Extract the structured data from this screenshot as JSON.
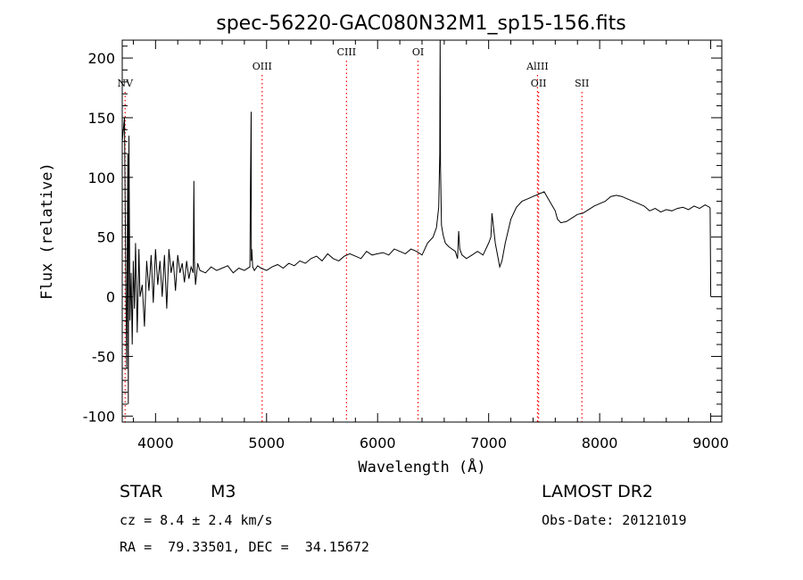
{
  "chart_data": {
    "type": "line",
    "title": "spec-56220-GAC080N32M1_sp15-156.fits",
    "xlabel": "Wavelength (Å)",
    "ylabel": "Flux (relative)",
    "xlim": [
      3700,
      9100
    ],
    "ylim": [
      -105,
      215
    ],
    "xticks": [
      4000,
      5000,
      6000,
      7000,
      8000,
      9000
    ],
    "yticks": [
      -100,
      -50,
      0,
      50,
      100,
      150,
      200
    ],
    "grid": false,
    "line_color": "#000000",
    "marker_color": "#ff0000",
    "series": [
      {
        "x": [
          3700,
          3720,
          3730,
          3740,
          3750,
          3755,
          3760,
          3770,
          3780,
          3790,
          3800,
          3810,
          3820,
          3835,
          3850,
          3860,
          3880,
          3900,
          3920,
          3940,
          3960,
          3980,
          4000,
          4020,
          4040,
          4060,
          4080,
          4101,
          4120,
          4140,
          4160,
          4180,
          4200,
          4220,
          4240,
          4260,
          4280,
          4300,
          4320,
          4340,
          4345,
          4350,
          4360,
          4380,
          4400,
          4450,
          4500,
          4550,
          4600,
          4650,
          4700,
          4750,
          4800,
          4850,
          4855,
          4861,
          4863,
          4867,
          4875,
          4890,
          4920,
          4950,
          5000,
          5050,
          5100,
          5150,
          5200,
          5250,
          5300,
          5350,
          5400,
          5450,
          5500,
          5550,
          5600,
          5650,
          5700,
          5750,
          5800,
          5850,
          5900,
          5950,
          6000,
          6050,
          6100,
          6150,
          6200,
          6250,
          6300,
          6350,
          6400,
          6450,
          6500,
          6530,
          6550,
          6560,
          6563,
          6566,
          6575,
          6590,
          6610,
          6640,
          6670,
          6700,
          6720,
          6730,
          6740,
          6760,
          6800,
          6850,
          6900,
          6950,
          7000,
          7020,
          7030,
          7060,
          7100,
          7120,
          7150,
          7200,
          7250,
          7300,
          7350,
          7400,
          7450,
          7500,
          7550,
          7600,
          7620,
          7650,
          7700,
          7750,
          7800,
          7850,
          7900,
          7950,
          8000,
          8050,
          8100,
          8150,
          8200,
          8250,
          8300,
          8350,
          8400,
          8450,
          8500,
          8550,
          8600,
          8650,
          8700,
          8750,
          8800,
          8850,
          8900,
          8950,
          8990,
          8995,
          9000
        ],
        "y": [
          130,
          150,
          40,
          -60,
          120,
          -90,
          135,
          -20,
          20,
          -40,
          30,
          -10,
          45,
          -30,
          40,
          0,
          10,
          -25,
          30,
          5,
          35,
          -5,
          40,
          10,
          30,
          0,
          35,
          -10,
          40,
          20,
          30,
          5,
          35,
          20,
          28,
          12,
          30,
          15,
          25,
          20,
          97,
          30,
          10,
          28,
          22,
          20,
          25,
          22,
          24,
          26,
          20,
          24,
          22,
          25,
          90,
          155,
          30,
          40,
          25,
          22,
          26,
          24,
          22,
          25,
          27,
          24,
          28,
          26,
          30,
          28,
          32,
          34,
          30,
          36,
          32,
          30,
          34,
          36,
          34,
          32,
          38,
          35,
          36,
          37,
          35,
          40,
          38,
          36,
          40,
          38,
          35,
          45,
          50,
          58,
          75,
          120,
          215,
          110,
          60,
          52,
          45,
          42,
          40,
          38,
          32,
          55,
          40,
          35,
          32,
          35,
          38,
          35,
          45,
          50,
          70,
          45,
          25,
          30,
          45,
          65,
          75,
          80,
          82,
          84,
          86,
          88,
          80,
          72,
          65,
          62,
          63,
          66,
          69,
          70,
          73,
          76,
          78,
          80,
          84,
          85,
          84,
          82,
          80,
          78,
          76,
          72,
          74,
          71,
          73,
          72,
          74,
          75,
          73,
          76,
          74,
          77,
          75,
          74,
          0
        ]
      }
    ],
    "line_markers": [
      {
        "label": "NV",
        "x": 3726,
        "label_row": 2
      },
      {
        "label": "OIII",
        "x": 4960,
        "label_row": 1
      },
      {
        "label": "CIII",
        "x": 5720,
        "label_row": 0
      },
      {
        "label": "OI",
        "x": 6364,
        "label_row": 0
      },
      {
        "label": "AlIII",
        "x": 7440,
        "label_row": 1
      },
      {
        "label": "OII",
        "x": 7450,
        "label_row": 2
      },
      {
        "label": "SII",
        "x": 7840,
        "label_row": 2
      }
    ]
  },
  "info": {
    "object_class": "STAR",
    "subclass": "M3",
    "survey": "LAMOST DR2",
    "cz": "cz = 8.4 ± 2.4 km/s",
    "obs_date": "Obs-Date: 20121019",
    "coords": "RA =  79.33501, DEC =  34.15672"
  }
}
